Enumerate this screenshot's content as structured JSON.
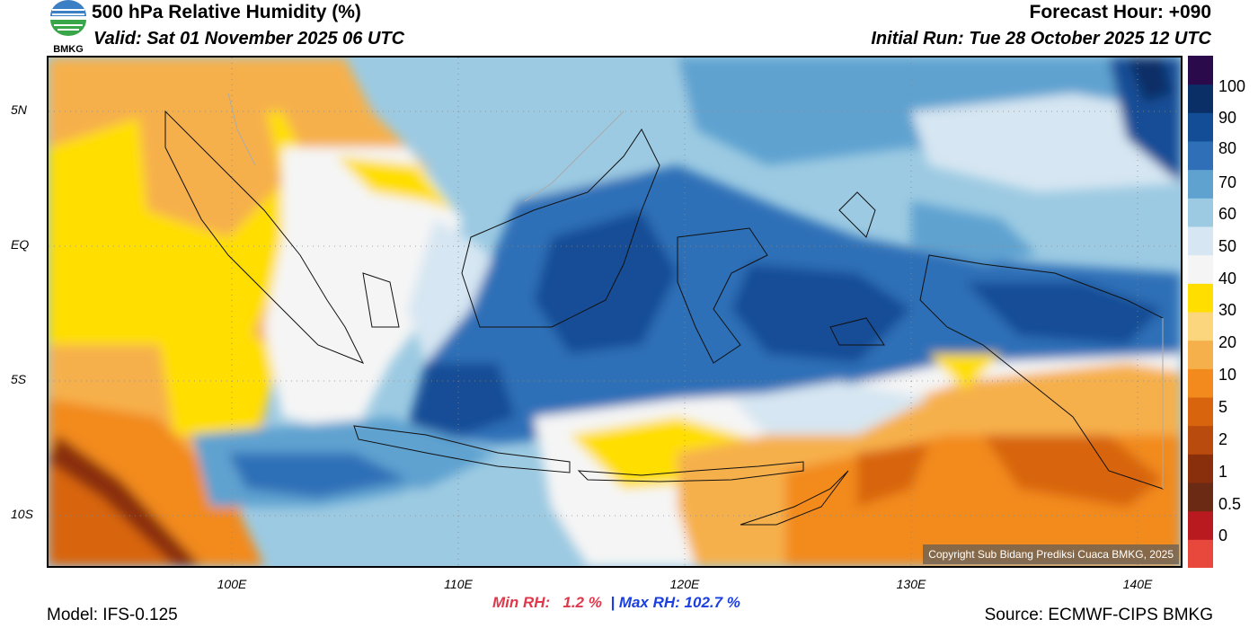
{
  "header": {
    "title": "500 hPa Relative Humidity (%)",
    "valid": "Valid: Sat 01 November 2025 06 UTC",
    "forecast_hour": "Forecast Hour: +090",
    "initial_run": "Initial Run: Tue 28 October 2025 12 UTC",
    "logo_text": "BMKG"
  },
  "axes": {
    "latitude_labels": [
      "5N",
      "EQ",
      "5S",
      "10S"
    ],
    "longitude_labels": [
      "100E",
      "110E",
      "120E",
      "130E",
      "140E"
    ]
  },
  "colorbar": {
    "labels": [
      "100",
      "90",
      "80",
      "70",
      "60",
      "50",
      "40",
      "30",
      "20",
      "10",
      "5",
      "2",
      "1",
      "0.5",
      "0"
    ],
    "colors": [
      "#e8473c",
      "#b81a1f",
      "#6b2a14",
      "#8a2f0c",
      "#b84b0d",
      "#d8650e",
      "#f28a1e",
      "#f6b04b",
      "#fbd67c",
      "#ffde00",
      "#f5f5f5",
      "#d6e6f2",
      "#9ccae2",
      "#5fa2d0",
      "#2f6fb7",
      "#124d96",
      "#0a2f66",
      "#2a0a4a"
    ]
  },
  "stats": {
    "min_rh": "Min RH:   1.2 %",
    "separator": "|",
    "max_rh": "Max RH: 102.7 %"
  },
  "footer": {
    "model": "Model: IFS-0.125",
    "source": "Source: ECMWF-CIPS BMKG",
    "copyright": "Copyright Sub Bidang Prediksi Cuaca BMKG, 2025"
  }
}
